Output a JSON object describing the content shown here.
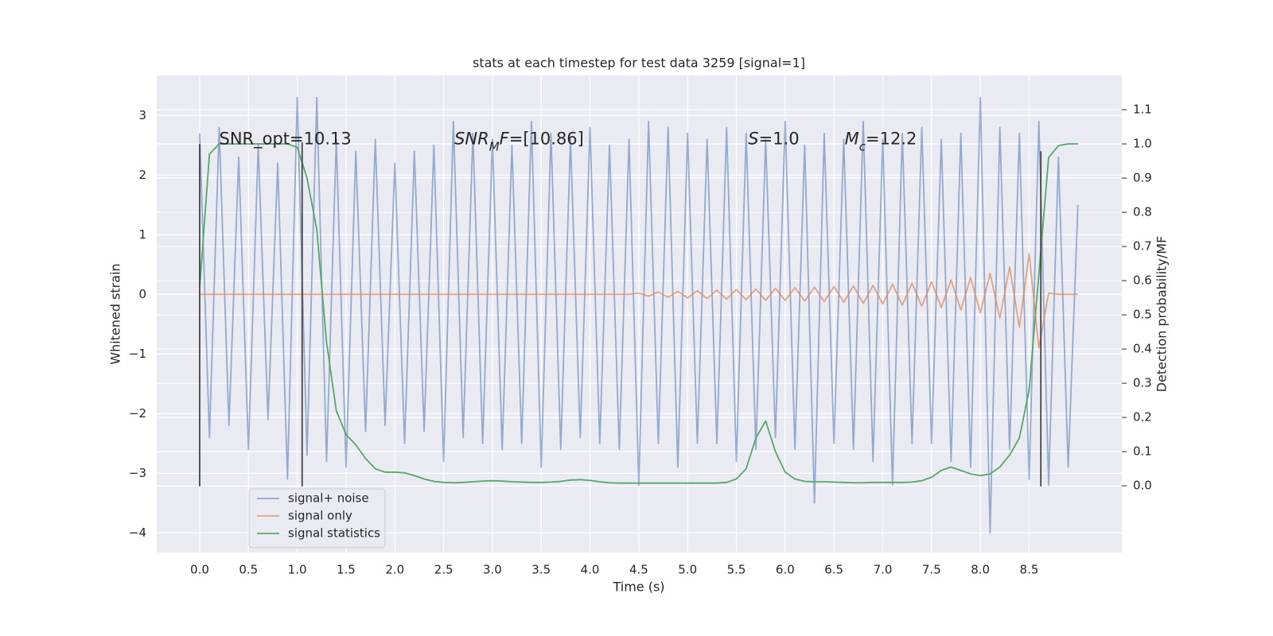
{
  "chart_data": {
    "type": "line",
    "title": "stats at each timestep for test data 3259 [signal=1]",
    "xlabel": "Time (s)",
    "ylabel": "Whitened strain",
    "y2label": "Detection probability/MF",
    "x": [
      0.0,
      0.1,
      0.2,
      0.3,
      0.4,
      0.5,
      0.6,
      0.7,
      0.8,
      0.9,
      1.0,
      1.1,
      1.2,
      1.3,
      1.4,
      1.5,
      1.6,
      1.7,
      1.8,
      1.9,
      2.0,
      2.1,
      2.2,
      2.3,
      2.4,
      2.5,
      2.6,
      2.7,
      2.8,
      2.9,
      3.0,
      3.1,
      3.2,
      3.3,
      3.4,
      3.5,
      3.6,
      3.7,
      3.8,
      3.9,
      4.0,
      4.1,
      4.2,
      4.3,
      4.4,
      4.5,
      4.6,
      4.7,
      4.8,
      4.9,
      5.0,
      5.1,
      5.2,
      5.3,
      5.4,
      5.5,
      5.6,
      5.7,
      5.8,
      5.9,
      6.0,
      6.1,
      6.2,
      6.3,
      6.4,
      6.5,
      6.6,
      6.7,
      6.8,
      6.9,
      7.0,
      7.1,
      7.2,
      7.3,
      7.4,
      7.5,
      7.6,
      7.7,
      7.8,
      7.9,
      8.0,
      8.1,
      8.2,
      8.3,
      8.4,
      8.5,
      8.6,
      8.7,
      8.8,
      8.9,
      9.0
    ],
    "series": [
      {
        "name": "signal+ noise",
        "color": "#4c72b0",
        "alpha": 0.55,
        "values": [
          2.7,
          -2.4,
          2.8,
          -2.2,
          2.3,
          -2.6,
          2.5,
          -2.1,
          2.2,
          -3.1,
          3.3,
          -2.7,
          3.3,
          -2.8,
          2.6,
          -2.9,
          2.4,
          -2.3,
          2.6,
          -2.2,
          2.2,
          -2.5,
          2.4,
          -2.3,
          2.5,
          -2.8,
          2.9,
          -2.4,
          2.7,
          -2.5,
          2.6,
          -2.6,
          2.5,
          -2.5,
          2.9,
          -2.9,
          2.7,
          -2.6,
          2.6,
          -2.4,
          2.8,
          -2.5,
          2.5,
          -2.6,
          2.6,
          -3.2,
          2.9,
          -2.5,
          2.8,
          -2.9,
          2.7,
          -2.5,
          2.6,
          -2.5,
          2.8,
          -2.8,
          2.7,
          -2.6,
          2.6,
          -2.4,
          2.9,
          -2.6,
          2.5,
          -3.5,
          2.7,
          -2.5,
          2.6,
          -2.6,
          2.9,
          -2.8,
          2.6,
          -3.2,
          2.7,
          -2.5,
          2.8,
          -2.5,
          2.6,
          -2.8,
          2.7,
          -2.9,
          3.3,
          -4.0,
          2.8,
          -2.6,
          2.7,
          -3.1,
          2.9,
          -3.2,
          2.3,
          -2.9,
          1.5
        ]
      },
      {
        "name": "signal only",
        "color": "#dd8452",
        "alpha": 0.7,
        "values": [
          0,
          0,
          0,
          0,
          0,
          0,
          0,
          0,
          0,
          0,
          0,
          0,
          0,
          0,
          0,
          0,
          0,
          0,
          0,
          0,
          0,
          0,
          0,
          0,
          0,
          0,
          0,
          0,
          0,
          0,
          0,
          0,
          0,
          0,
          0,
          0,
          0,
          0,
          0,
          0,
          0,
          0,
          0,
          0,
          0,
          0.02,
          -0.03,
          0.04,
          -0.05,
          0.05,
          -0.06,
          0.06,
          -0.07,
          0.07,
          -0.08,
          0.08,
          -0.09,
          0.09,
          -0.1,
          0.1,
          -0.1,
          0.11,
          -0.11,
          0.12,
          -0.12,
          0.13,
          -0.13,
          0.14,
          -0.15,
          0.15,
          -0.16,
          0.17,
          -0.18,
          0.19,
          -0.2,
          0.21,
          -0.22,
          0.24,
          -0.26,
          0.28,
          -0.31,
          0.35,
          -0.4,
          0.46,
          -0.55,
          0.68,
          -0.9,
          0.02,
          0,
          0,
          0
        ]
      },
      {
        "name": "signal statistics",
        "color": "#55a868",
        "alpha": 1,
        "axis": "y2",
        "values": [
          0.58,
          0.97,
          1.0,
          1.0,
          1.0,
          1.0,
          1.0,
          1.0,
          1.0,
          1.0,
          0.99,
          0.9,
          0.75,
          0.42,
          0.22,
          0.15,
          0.12,
          0.08,
          0.05,
          0.04,
          0.04,
          0.038,
          0.03,
          0.02,
          0.013,
          0.01,
          0.009,
          0.01,
          0.012,
          0.014,
          0.015,
          0.014,
          0.012,
          0.011,
          0.01,
          0.01,
          0.011,
          0.013,
          0.017,
          0.018,
          0.016,
          0.012,
          0.009,
          0.008,
          0.008,
          0.008,
          0.008,
          0.008,
          0.008,
          0.008,
          0.008,
          0.008,
          0.008,
          0.008,
          0.01,
          0.02,
          0.05,
          0.14,
          0.19,
          0.1,
          0.04,
          0.02,
          0.013,
          0.012,
          0.012,
          0.011,
          0.01,
          0.009,
          0.009,
          0.01,
          0.01,
          0.01,
          0.01,
          0.011,
          0.015,
          0.025,
          0.045,
          0.055,
          0.045,
          0.035,
          0.03,
          0.035,
          0.055,
          0.09,
          0.14,
          0.28,
          0.62,
          0.96,
          0.995,
          1.0,
          1.0
        ]
      }
    ],
    "vlines": [
      {
        "x": 0.0,
        "ymin": -3.22,
        "ymax": 2.52,
        "color": "#444444"
      },
      {
        "x": 1.05,
        "ymin": -3.22,
        "ymax": 2.55,
        "color": "#444444"
      },
      {
        "x": 8.62,
        "ymin": -3.22,
        "ymax": 2.4,
        "color": "#444444"
      }
    ],
    "annotations": [
      {
        "x": 0.2,
        "y": 2.6,
        "parts": [
          {
            "text": "SNR_opt=10.13"
          }
        ]
      },
      {
        "x": 2.61,
        "y": 2.6,
        "parts": [
          {
            "text": "SNR",
            "italic": true
          },
          {
            "text": "M",
            "italic": true,
            "sub": true
          },
          {
            "text": "F",
            "italic": true
          },
          {
            "text": "=[10.86]"
          }
        ]
      },
      {
        "x": 5.62,
        "y": 2.6,
        "parts": [
          {
            "text": "S",
            "italic": true
          },
          {
            "text": "=1.0"
          }
        ]
      },
      {
        "x": 6.61,
        "y": 2.6,
        "parts": [
          {
            "text": "M",
            "italic": true
          },
          {
            "text": "c",
            "italic": true,
            "sub": true
          },
          {
            "text": "=12.2"
          }
        ]
      }
    ],
    "xlim": [
      -0.44,
      9.45
    ],
    "ylim": [
      -4.33,
      3.67
    ],
    "y2lim": [
      -0.195,
      1.2
    ],
    "xticks": [
      {
        "value": 0,
        "label": "0.0"
      },
      0.5,
      {
        "value": 1,
        "label": "1.0"
      },
      1.5,
      {
        "value": 2,
        "label": "2.0"
      },
      2.5,
      {
        "value": 3,
        "label": "3.0"
      },
      3.5,
      {
        "value": 4,
        "label": "4.0"
      },
      4.5,
      {
        "value": 5,
        "label": "5.0"
      },
      5.5,
      {
        "value": 6,
        "label": "6.0"
      },
      6.5,
      {
        "value": 7,
        "label": "7.0"
      },
      7.5,
      {
        "value": 8,
        "label": "8.0"
      },
      8.5
    ],
    "yticks": [
      {
        "value": -4,
        "label": "−4"
      },
      {
        "value": -3,
        "label": "−3"
      },
      {
        "value": -2,
        "label": "−2"
      },
      {
        "value": -1,
        "label": "−1"
      },
      0,
      1,
      2,
      3
    ],
    "y2ticks": [
      {
        "value": 0,
        "label": "0.0"
      },
      0.1,
      0.2,
      0.3,
      0.4,
      0.5,
      0.6,
      0.7,
      0.8,
      0.9,
      {
        "value": 1,
        "label": "1.0"
      },
      1.1
    ],
    "grid": true,
    "legend": "lower left"
  }
}
